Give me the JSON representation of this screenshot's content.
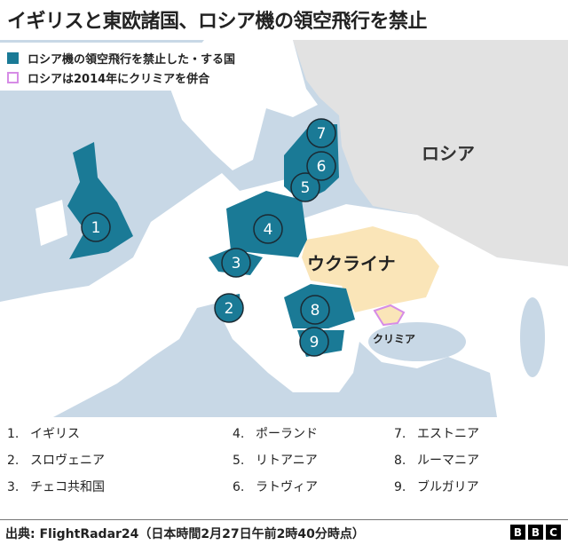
{
  "title": "イギリスと東欧諸国、ロシア機の領空飛行を禁止",
  "legend": [
    {
      "label": "ロシア機の領空飛行を禁止した・する国",
      "color": "#1a7a96",
      "style": "filled"
    },
    {
      "label": "ロシアは2014年にクリミアを併合",
      "color": "#d68ce6",
      "style": "outline"
    }
  ],
  "map_labels": {
    "russia": "ロシア",
    "ukraine": "ウクライナ",
    "crimea": "クリミア"
  },
  "colors": {
    "sea": "#c8d8e6",
    "land": "#ffffff",
    "russia": "#e2e2e2",
    "banned": "#1a7a96",
    "ukraine": "#fae5b8",
    "crimea_outline": "#d68ce6"
  },
  "markers": [
    "1",
    "2",
    "3",
    "4",
    "5",
    "6",
    "7",
    "8",
    "9"
  ],
  "countries": [
    {
      "num": "1.",
      "name": "イギリス"
    },
    {
      "num": "2.",
      "name": "スロヴェニア"
    },
    {
      "num": "3.",
      "name": "チェコ共和国"
    },
    {
      "num": "4.",
      "name": "ポーランド"
    },
    {
      "num": "5.",
      "name": "リトアニア"
    },
    {
      "num": "6.",
      "name": "ラトヴィア"
    },
    {
      "num": "7.",
      "name": "エストニア"
    },
    {
      "num": "8.",
      "name": "ルーマニア"
    },
    {
      "num": "9.",
      "name": "ブルガリア"
    }
  ],
  "footer": {
    "source": "出典: FlightRadar24（日本時間2月27日午前2時40分時点）",
    "logo": "BBC",
    "logo_letters": [
      "B",
      "B",
      "C"
    ]
  }
}
